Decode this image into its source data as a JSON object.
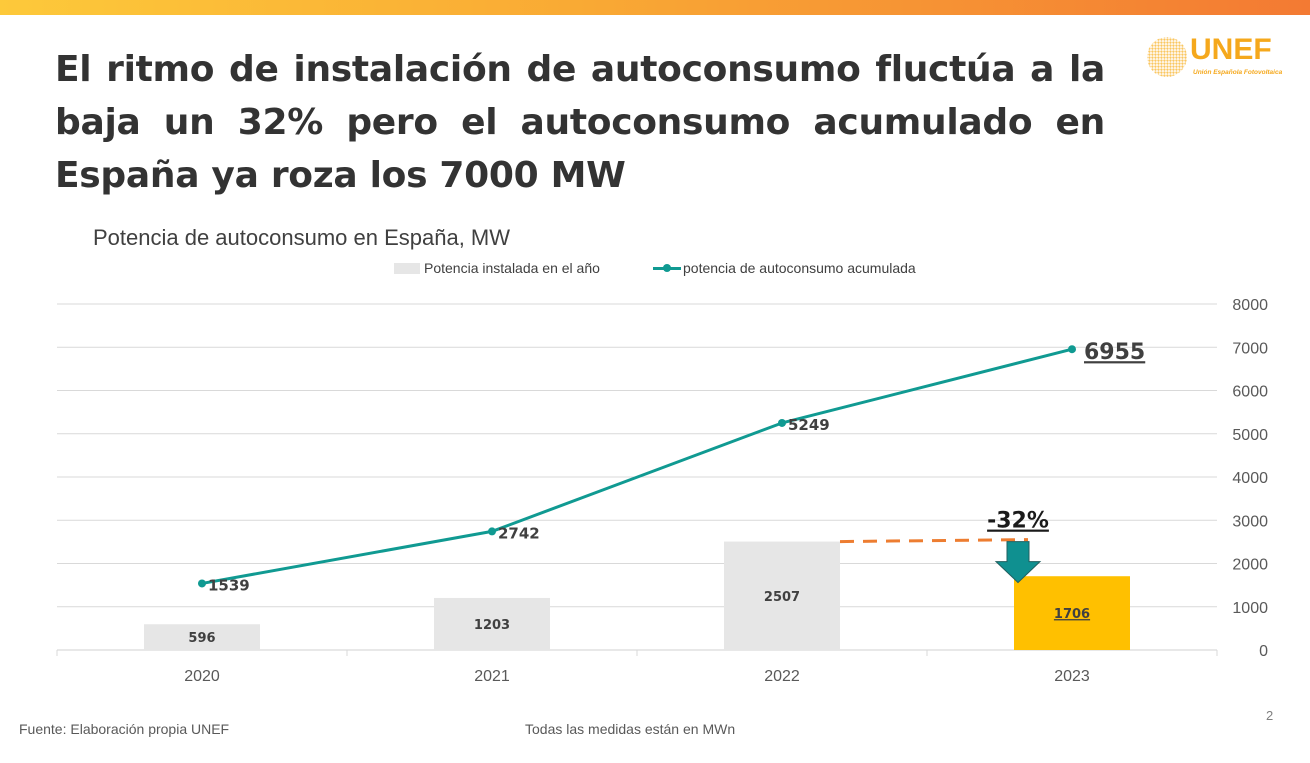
{
  "slide": {
    "title": "El ritmo de instalación de autoconsumo fluctúa a la baja un 32% pero el autoconsumo acumulado en España ya roza los 7000 MW",
    "logo": {
      "name": "UNEF",
      "subtitle": "Unión Española Fotovoltaica"
    },
    "footer_source": "Fuente: Elaboración propia UNEF",
    "footer_note": "Todas las medidas están en MWn",
    "page_number": "2"
  },
  "colors": {
    "bar": "#e6e6e6",
    "bar_highlight": "#ffc000",
    "line": "#109a92",
    "arrow": "#0f9090",
    "dashed": "#ed7d31",
    "top_bar_start": "#fdc93a",
    "top_bar_end": "#f37a33"
  },
  "chart_data": {
    "type": "bar",
    "title": "Potencia de autoconsumo en España, MW",
    "xlabel": "",
    "ylabel": "",
    "categories": [
      "2020",
      "2021",
      "2022",
      "2023"
    ],
    "ylim": [
      0,
      8000
    ],
    "yticks": [
      "0",
      "1000",
      "2000",
      "3000",
      "4000",
      "5000",
      "6000",
      "7000",
      "8000"
    ],
    "grid": true,
    "legend_position": "top",
    "series": [
      {
        "name": "Potencia instalada en el año",
        "kind": "bar",
        "values": [
          596,
          1203,
          2507,
          1706
        ],
        "labels": [
          "596",
          "1203",
          "2507",
          "1706"
        ],
        "highlight_index": 3
      },
      {
        "name": "potencia de autoconsumo acumulada",
        "kind": "line",
        "values": [
          1539,
          2742,
          5249,
          6955
        ],
        "labels": [
          "1539",
          "2742",
          "5249",
          "6955"
        ]
      }
    ],
    "annotations": [
      {
        "text": "-32%",
        "type": "decrease-arrow",
        "from_category": "2022",
        "to_category": "2023"
      }
    ]
  }
}
